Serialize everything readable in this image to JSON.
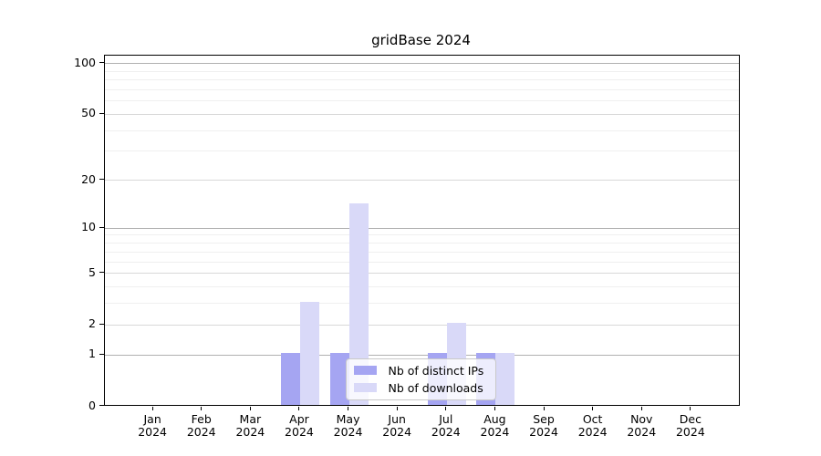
{
  "chart_data": {
    "type": "bar",
    "title": "gridBase 2024",
    "categories": [
      "Jan 2024",
      "Feb 2024",
      "Mar 2024",
      "Apr 2024",
      "May 2024",
      "Jun 2024",
      "Jul 2024",
      "Aug 2024",
      "Sep 2024",
      "Oct 2024",
      "Nov 2024",
      "Dec 2024"
    ],
    "series": [
      {
        "name": "Nb of distinct IPs",
        "color": "#a5a5f2",
        "values": [
          0,
          0,
          0,
          1,
          1,
          0,
          1,
          1,
          0,
          0,
          0,
          0
        ]
      },
      {
        "name": "Nb of downloads",
        "color": "#d9d9f8",
        "values": [
          0,
          0,
          0,
          3,
          14,
          0,
          2,
          1,
          0,
          0,
          0,
          0
        ]
      }
    ],
    "xlabel": "",
    "ylabel": "",
    "y_scale": "log10(1+x)",
    "ylim": [
      0,
      112
    ],
    "y_ticks_labeled": [
      0,
      1,
      2,
      5,
      10,
      20,
      50,
      100
    ],
    "y_grid_strong": [
      1,
      10,
      100
    ],
    "y_grid_medium": [
      2,
      5,
      20,
      50
    ],
    "y_grid_minor": [
      3,
      4,
      6,
      7,
      8,
      9,
      30,
      40,
      60,
      70,
      80,
      90
    ],
    "grid": "on",
    "legend_position": "inside-bottom-center"
  },
  "colors": {
    "background": "#ffffff",
    "axis": "#000000",
    "grid_strong": "#b0b0b0",
    "grid_medium": "#d8d8d8",
    "grid_minor": "#efefef",
    "legend_border": "#c9c9c9",
    "text": "#000000"
  }
}
